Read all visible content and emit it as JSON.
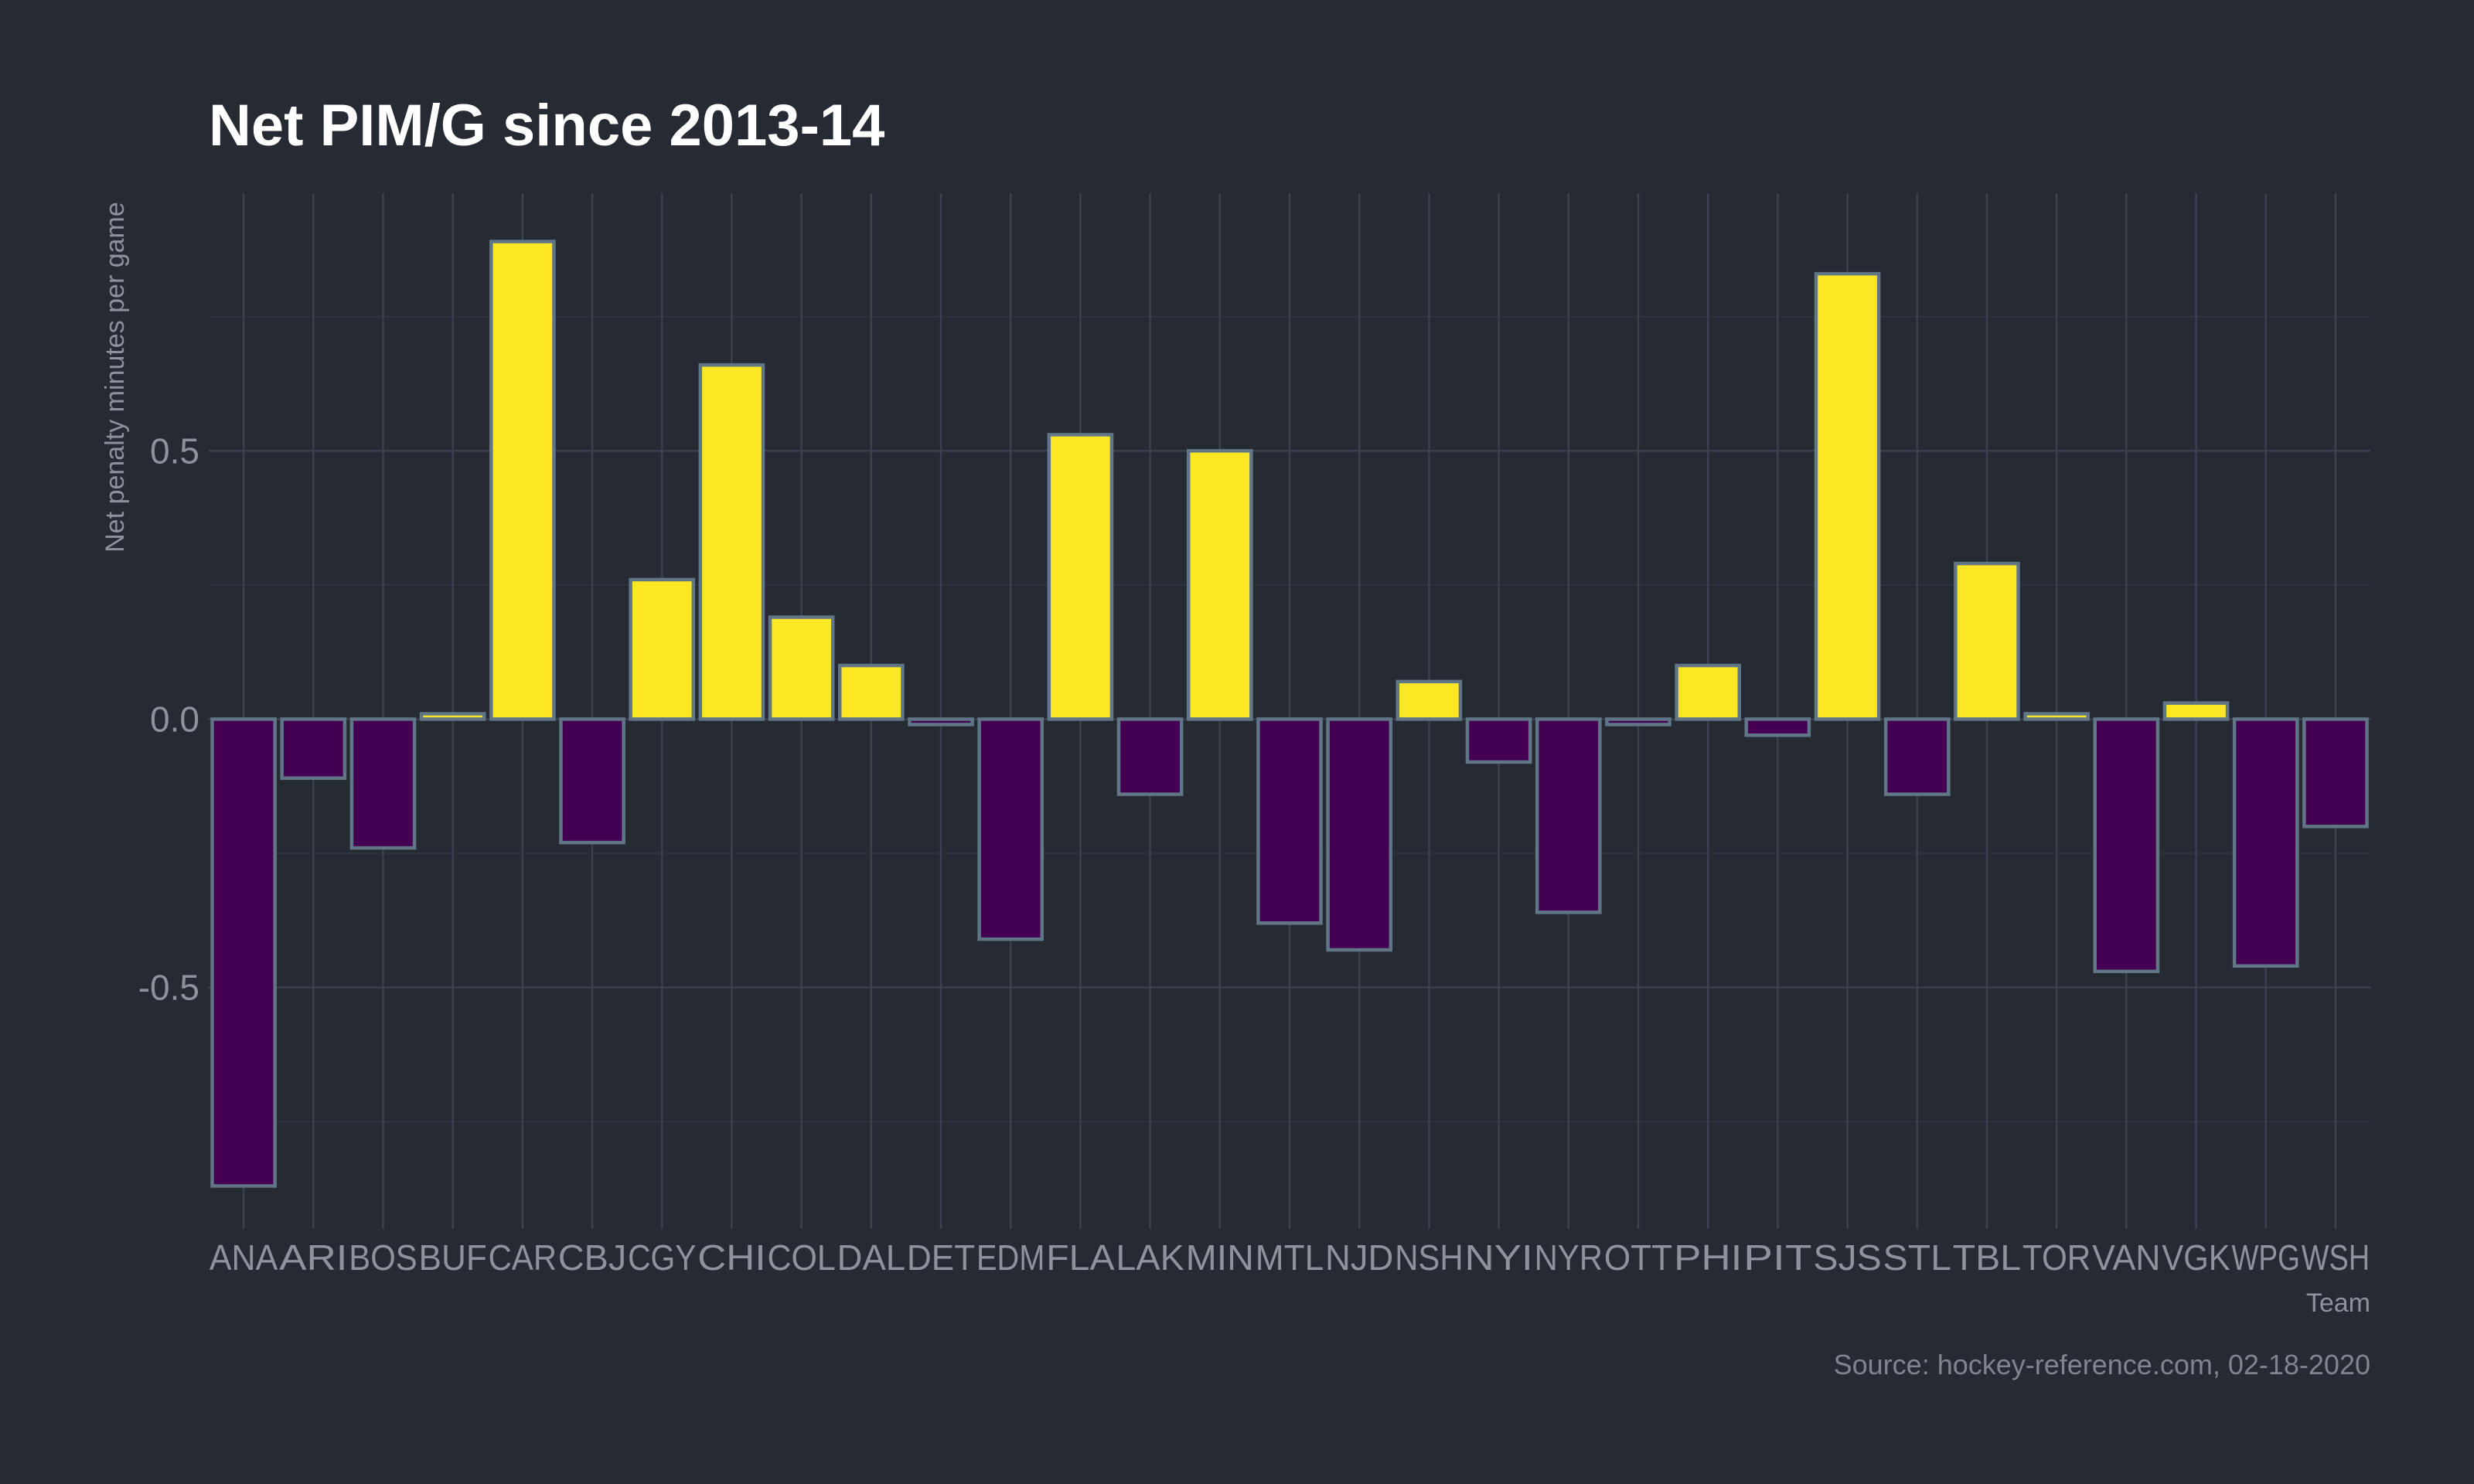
{
  "chart_data": {
    "type": "bar",
    "title": "Net PIM/G since 2013-14",
    "xlabel": "Team",
    "ylabel": "Net penalty minutes per game",
    "caption": "Source: hockey-reference.com, 02-18-2020",
    "categories": [
      "ANA",
      "ARI",
      "BOS",
      "BUF",
      "CAR",
      "CBJ",
      "CGY",
      "CHI",
      "COL",
      "DAL",
      "DET",
      "EDM",
      "FLA",
      "LAK",
      "MIN",
      "MTL",
      "NJD",
      "NSH",
      "NYI",
      "NYR",
      "OTT",
      "PHI",
      "PIT",
      "SJS",
      "STL",
      "TBL",
      "TOR",
      "VAN",
      "VGK",
      "WPG",
      "WSH"
    ],
    "values": [
      -0.87,
      -0.11,
      -0.24,
      0.01,
      0.89,
      -0.23,
      0.26,
      0.66,
      0.19,
      0.1,
      -0.01,
      -0.41,
      0.53,
      -0.14,
      0.5,
      -0.38,
      -0.43,
      0.07,
      -0.08,
      -0.36,
      -0.01,
      0.1,
      -0.03,
      0.83,
      -0.14,
      0.29,
      0.01,
      -0.47,
      0.03,
      -0.46,
      -0.2
    ],
    "ylim": [
      -0.95,
      0.98
    ],
    "y_ticks": [
      -0.5,
      0.0,
      0.5
    ],
    "y_tick_labels": [
      "-0.5",
      "0.0",
      "0.5"
    ],
    "grid": true,
    "legend": "none",
    "colors": {
      "positive": "#fde725",
      "negative": "#440154",
      "bar_outline": "#607585",
      "background": "#252a33"
    }
  }
}
